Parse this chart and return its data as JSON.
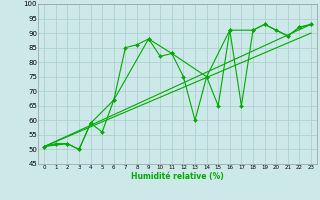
{
  "xlabel": "Humidité relative (%)",
  "xlim": [
    -0.5,
    23.5
  ],
  "ylim": [
    45,
    100
  ],
  "yticks": [
    45,
    50,
    55,
    60,
    65,
    70,
    75,
    80,
    85,
    90,
    95,
    100
  ],
  "xticks": [
    0,
    1,
    2,
    3,
    4,
    5,
    6,
    7,
    8,
    9,
    10,
    11,
    12,
    13,
    14,
    15,
    16,
    17,
    18,
    19,
    20,
    21,
    22,
    23
  ],
  "background_color": "#cce8e8",
  "grid_color": "#aacccc",
  "line_color": "#00aa00",
  "lines": [
    {
      "x": [
        0,
        1,
        2,
        3,
        4,
        5,
        6,
        7,
        8,
        9,
        10,
        11,
        12,
        13,
        14,
        15,
        16,
        17,
        18,
        19,
        20,
        21,
        22,
        23
      ],
      "y": [
        51,
        52,
        52,
        50,
        59,
        56,
        67,
        85,
        86,
        88,
        82,
        83,
        75,
        60,
        75,
        65,
        91,
        65,
        91,
        93,
        91,
        89,
        92,
        93
      ],
      "marker": true
    },
    {
      "x": [
        0,
        2,
        3,
        4,
        6,
        9,
        11,
        14,
        16,
        18,
        19,
        21,
        22,
        23
      ],
      "y": [
        51,
        52,
        50,
        59,
        67,
        88,
        83,
        75,
        91,
        91,
        93,
        89,
        92,
        93
      ],
      "marker": true
    },
    {
      "x": [
        0,
        23
      ],
      "y": [
        51,
        93
      ],
      "marker": false
    },
    {
      "x": [
        0,
        23
      ],
      "y": [
        51,
        90
      ],
      "marker": false
    }
  ]
}
